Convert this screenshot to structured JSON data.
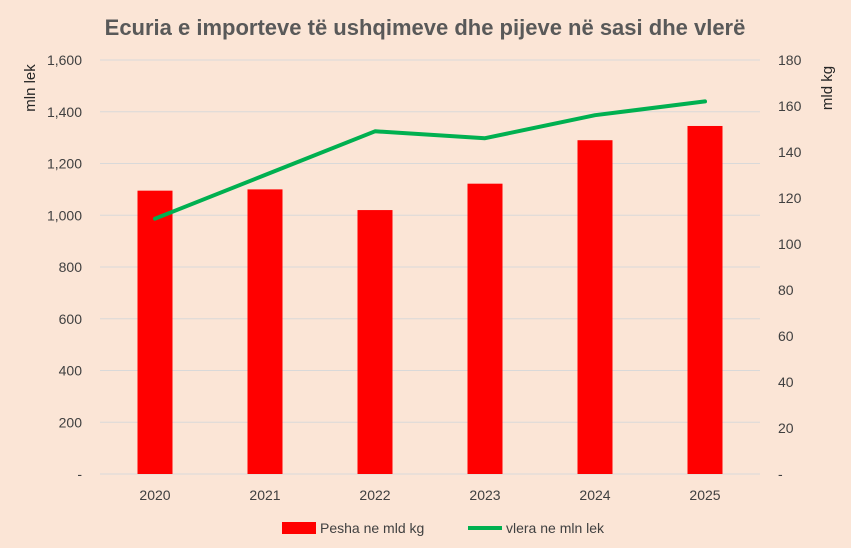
{
  "chart_data": {
    "type": "bar",
    "title": "Ecuria e importeve të ushqimeve dhe pijeve në sasi dhe vlerë",
    "categories": [
      "2020",
      "2021",
      "2022",
      "2023",
      "2024",
      "2025"
    ],
    "y_left": {
      "label": "mln lek",
      "lim": [
        0,
        1600
      ],
      "ticks": [
        "-",
        "200",
        "400",
        "600",
        "800",
        "1,000",
        "1,200",
        "1,400",
        "1,600"
      ]
    },
    "y_right": {
      "label": "mld kg",
      "lim": [
        0,
        180
      ],
      "ticks": [
        "-",
        "20",
        "40",
        "60",
        "80",
        "100",
        "120",
        "140",
        "160",
        "180"
      ]
    },
    "series": [
      {
        "name": "Pesha ne mld kg",
        "kind": "bar",
        "axis": "left",
        "color": "#ff0000",
        "values": [
          1095,
          1100,
          1020,
          1122,
          1290,
          1345
        ]
      },
      {
        "name": "vlera ne mln lek",
        "kind": "line",
        "axis": "right",
        "color": "#00b050",
        "values": [
          111,
          130,
          149,
          146,
          156,
          162
        ]
      }
    ],
    "grid": true,
    "legend": "bottom"
  }
}
